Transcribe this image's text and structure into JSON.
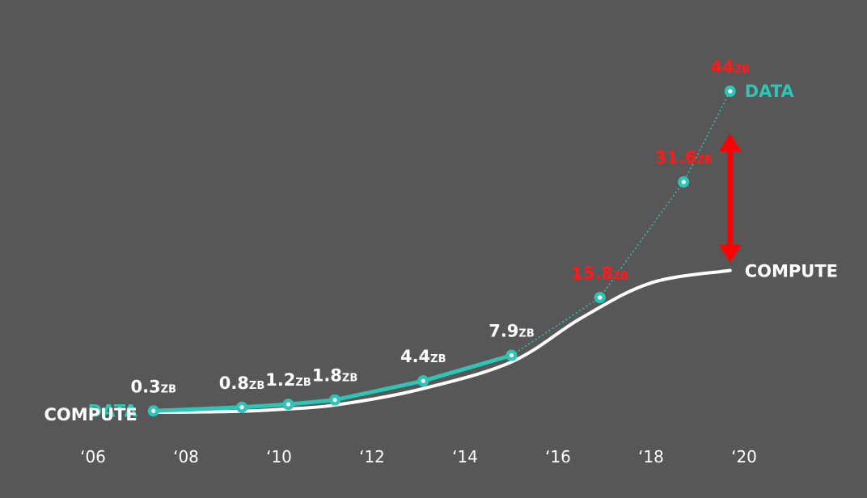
{
  "chart_data": {
    "type": "line",
    "title": "",
    "xlabel": "",
    "ylabel": "",
    "x_ticks": [
      "‘06",
      "‘08",
      "‘10",
      "‘12",
      "‘14",
      "‘16",
      "‘18",
      "‘20"
    ],
    "x_range": [
      2006,
      2020
    ],
    "unit": "ZB",
    "grid": false,
    "series": [
      {
        "name": "DATA",
        "color": "#2ec4b6",
        "points": [
          {
            "x": 2007.3,
            "y": 0.3,
            "value": "0.3",
            "unit": "ZB",
            "projected": false
          },
          {
            "x": 2009.2,
            "y": 0.8,
            "value": "0.8",
            "unit": "ZB",
            "projected": false
          },
          {
            "x": 2010.2,
            "y": 1.2,
            "value": "1.2",
            "unit": "ZB",
            "projected": false
          },
          {
            "x": 2011.2,
            "y": 1.8,
            "value": "1.8",
            "unit": "ZB",
            "projected": false
          },
          {
            "x": 2013.1,
            "y": 4.4,
            "value": "4.4",
            "unit": "ZB",
            "projected": false
          },
          {
            "x": 2015.0,
            "y": 7.9,
            "value": "7.9",
            "unit": "ZB",
            "projected": false
          },
          {
            "x": 2016.9,
            "y": 15.8,
            "value": "15.8",
            "unit": "ZB",
            "projected": true
          },
          {
            "x": 2018.7,
            "y": 31.6,
            "value": "31.6",
            "unit": "ZB",
            "projected": true
          },
          {
            "x": 2019.7,
            "y": 44,
            "value": "44",
            "unit": "ZB",
            "projected": true
          }
        ]
      },
      {
        "name": "COMPUTE",
        "color": "#ffffff",
        "points": [
          {
            "x": 2007.3,
            "y": 0.1
          },
          {
            "x": 2009.0,
            "y": 0.22
          },
          {
            "x": 2010.0,
            "y": 0.5
          },
          {
            "x": 2011.2,
            "y": 1.1
          },
          {
            "x": 2013.0,
            "y": 3.2
          },
          {
            "x": 2015.0,
            "y": 7.0
          },
          {
            "x": 2016.5,
            "y": 13.0
          },
          {
            "x": 2018.0,
            "y": 17.8
          },
          {
            "x": 2019.7,
            "y": 19.5
          }
        ]
      }
    ],
    "annotation": {
      "type": "double-arrow",
      "color": "#ff0000",
      "x": 2019.7,
      "y_from": 20.6,
      "y_to": 38.2
    },
    "colors": {
      "background": "#575757",
      "data": "#2ec4b6",
      "compute": "#ffffff",
      "projected_label": "#ff1a1a",
      "actual_label": "#ffffff",
      "tick_label": "#ffffff"
    }
  }
}
